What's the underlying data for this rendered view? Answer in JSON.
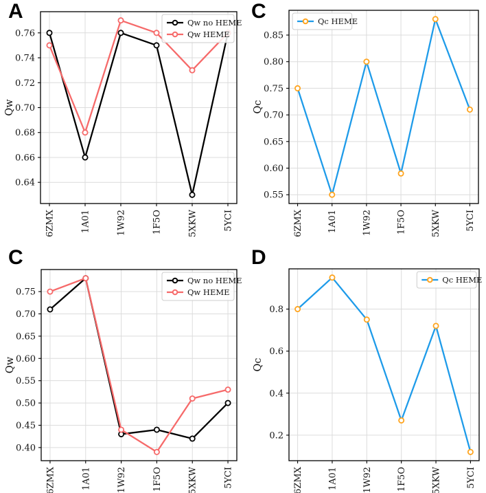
{
  "figure": {
    "background": "#ffffff",
    "grid_color": "#dcdcdc",
    "axis_color": "#000000"
  },
  "chart_data": [
    {
      "type": "line",
      "panel_label": "A",
      "categories": [
        "6ZMX",
        "1A01",
        "1W92",
        "1F5O",
        "5XKW",
        "5YCI"
      ],
      "ylabel": "Qw",
      "xlabel": "",
      "yticks": [
        0.64,
        0.66,
        0.68,
        0.7,
        0.72,
        0.74,
        0.76
      ],
      "ytick_labels": [
        "0.64",
        "0.66",
        "0.68",
        "0.70",
        "0.72",
        "0.74",
        "0.76"
      ],
      "ylim": [
        0.623,
        0.777
      ],
      "grid": true,
      "legend_position": "top-right",
      "series": [
        {
          "name": "Qw no HEME",
          "line_color": "#000000",
          "marker": "open-circle",
          "marker_edge_color": "#000000",
          "values": [
            0.76,
            0.66,
            0.76,
            0.75,
            0.63,
            0.76
          ]
        },
        {
          "name": "Qw HEME",
          "line_color": "#f66a6a",
          "marker": "open-circle",
          "marker_edge_color": "#f66a6a",
          "values": [
            0.75,
            0.68,
            0.77,
            0.76,
            0.73,
            0.76
          ]
        }
      ]
    },
    {
      "type": "line",
      "panel_label": "C",
      "categories": [
        "6ZMX",
        "1A01",
        "1W92",
        "1F5O",
        "5XKW",
        "5YCI"
      ],
      "ylabel": "Qc",
      "xlabel": "",
      "yticks": [
        0.55,
        0.6,
        0.65,
        0.7,
        0.75,
        0.8,
        0.85
      ],
      "ytick_labels": [
        "0.55",
        "0.60",
        "0.65",
        "0.70",
        "0.75",
        "0.80",
        "0.85"
      ],
      "ylim": [
        0.5335,
        0.8965
      ],
      "grid": true,
      "legend_position": "top-left",
      "series": [
        {
          "name": "Qc HEME",
          "line_color": "#1e9be9",
          "marker": "open-circle",
          "marker_edge_color": "#ffa41e",
          "values": [
            0.75,
            0.55,
            0.8,
            0.59,
            0.88,
            0.71
          ]
        }
      ]
    },
    {
      "type": "line",
      "panel_label": "C",
      "categories": [
        "6ZMX",
        "1A01",
        "1W92",
        "1F5O",
        "5XKW",
        "5YCI"
      ],
      "ylabel": "Qw",
      "xlabel": "",
      "yticks": [
        0.4,
        0.45,
        0.5,
        0.55,
        0.6,
        0.65,
        0.7,
        0.75
      ],
      "ytick_labels": [
        "0.40",
        "0.45",
        "0.50",
        "0.55",
        "0.60",
        "0.65",
        "0.70",
        "0.75"
      ],
      "ylim": [
        0.3705,
        0.7995
      ],
      "grid": true,
      "legend_position": "top-right",
      "series": [
        {
          "name": "Qw no HEME",
          "line_color": "#000000",
          "marker": "open-circle",
          "marker_edge_color": "#000000",
          "values": [
            0.71,
            0.78,
            0.43,
            0.44,
            0.42,
            0.5
          ]
        },
        {
          "name": "Qw HEME",
          "line_color": "#f66a6a",
          "marker": "open-circle",
          "marker_edge_color": "#f66a6a",
          "values": [
            0.75,
            0.78,
            0.44,
            0.39,
            0.51,
            0.53
          ]
        }
      ]
    },
    {
      "type": "line",
      "panel_label": "D",
      "categories": [
        "6ZMX",
        "1A01",
        "1W92",
        "1F5O",
        "5XKW",
        "5YCI"
      ],
      "ylabel": "Qc",
      "xlabel": "",
      "yticks": [
        0.2,
        0.4,
        0.6,
        0.8
      ],
      "ytick_labels": [
        "0.2",
        "0.4",
        "0.6",
        "0.8"
      ],
      "ylim": [
        0.0785,
        0.9915
      ],
      "grid": true,
      "legend_position": "top-right",
      "series": [
        {
          "name": "Qc HEME",
          "line_color": "#1e9be9",
          "marker": "open-circle",
          "marker_edge_color": "#ffa41e",
          "values": [
            0.8,
            0.95,
            0.75,
            0.27,
            0.72,
            0.12
          ]
        }
      ]
    }
  ]
}
